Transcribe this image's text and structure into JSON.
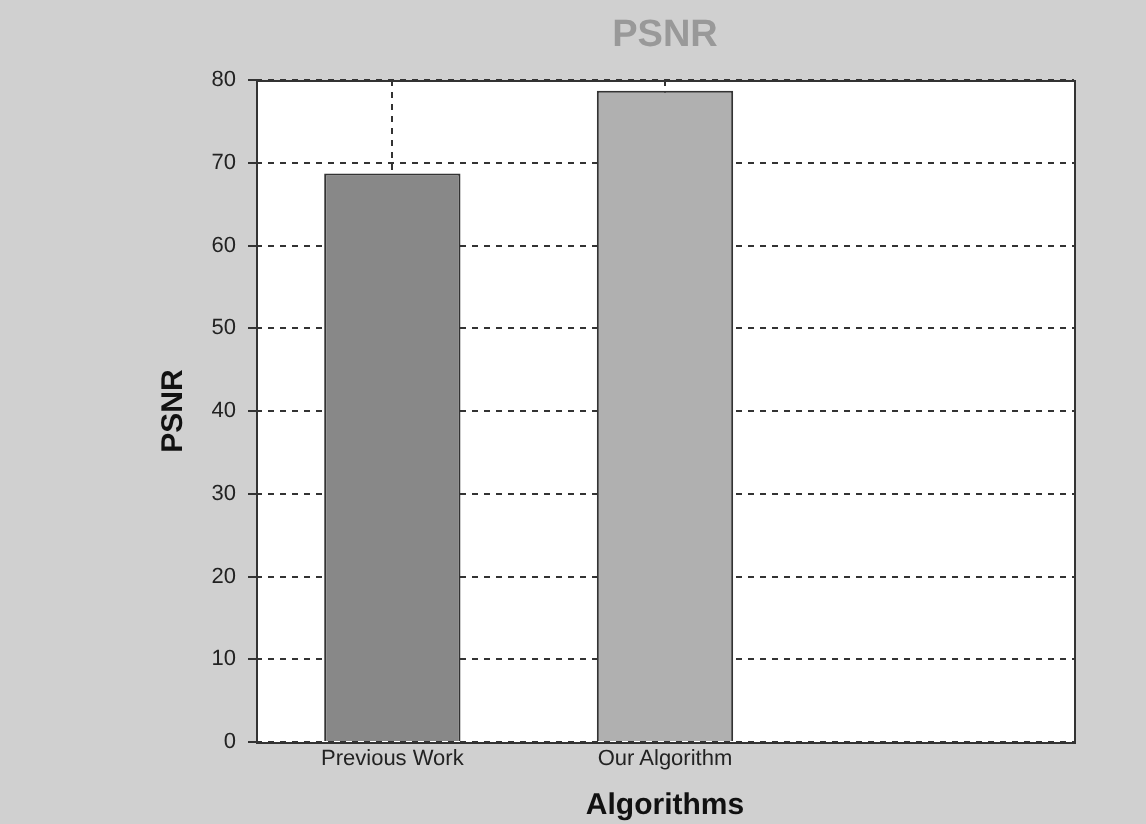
{
  "chart_data": {
    "type": "bar",
    "title": "PSNR",
    "xlabel": "Algorithms",
    "ylabel": "PSNR",
    "categories": [
      "Previous Work",
      "Our Algorithm",
      null
    ],
    "values": [
      68.7,
      78.7,
      null
    ],
    "colors": [
      "#888888",
      "#b0b0b0",
      "#b0b0b0"
    ],
    "ylim": [
      0,
      80
    ],
    "yticks": [
      0,
      10,
      20,
      30,
      40,
      50,
      60,
      70,
      80
    ],
    "grid": true
  }
}
